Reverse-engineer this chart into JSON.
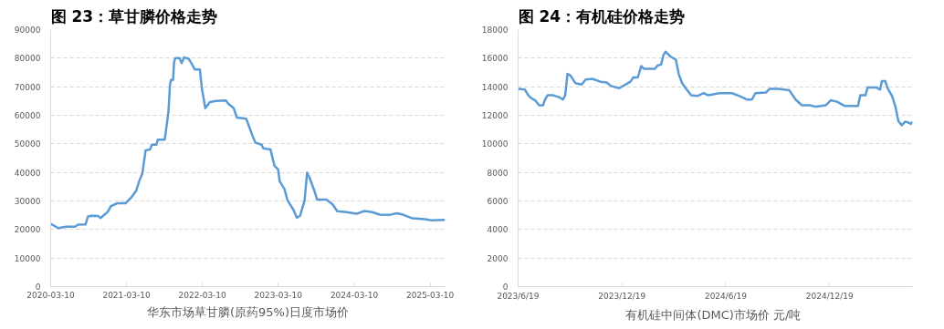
{
  "chart_data": [
    {
      "type": "line",
      "title": "图 23：草甘膦价格走势",
      "xlabel": "华东市场草甘膦(原药95%)日度市场价",
      "grid": "y",
      "line_style": "solid",
      "marker": "none",
      "xlim": [
        "2020-03-10",
        "2025-05-21"
      ],
      "ylim": [
        0,
        90000
      ],
      "xticks": [
        "2020-03-10",
        "2021-03-10",
        "2022-03-10",
        "2023-03-10",
        "2024-03-10",
        "2025-03-10"
      ],
      "yticks": [
        0,
        10000,
        20000,
        30000,
        40000,
        50000,
        60000,
        70000,
        80000,
        90000
      ],
      "series": [
        {
          "color": "#5b9bd5",
          "x": [
            "2020-03-10",
            "2020-04-15",
            "2020-05-25",
            "2020-07-05",
            "2020-07-20",
            "2020-08-25",
            "2020-09-05",
            "2020-09-20",
            "2020-10-25",
            "2020-11-05",
            "2020-12-10",
            "2020-12-25",
            "2021-01-25",
            "2021-03-05",
            "2021-04-05",
            "2021-04-25",
            "2021-05-10",
            "2021-05-25",
            "2021-06-10",
            "2021-07-01",
            "2021-07-10",
            "2021-08-01",
            "2021-08-08",
            "2021-09-10",
            "2021-09-18",
            "2021-09-28",
            "2021-10-05",
            "2021-10-10",
            "2021-10-20",
            "2021-10-25",
            "2021-10-31",
            "2021-11-20",
            "2021-11-30",
            "2021-12-12",
            "2022-01-03",
            "2022-01-18",
            "2022-02-02",
            "2022-02-26",
            "2022-03-08",
            "2022-03-24",
            "2022-04-15",
            "2022-05-15",
            "2022-07-01",
            "2022-07-15",
            "2022-08-08",
            "2022-08-23",
            "2022-10-07",
            "2022-11-05",
            "2022-11-20",
            "2022-12-20",
            "2022-12-28",
            "2023-02-01",
            "2023-02-20",
            "2023-03-10",
            "2023-03-17",
            "2023-04-09",
            "2023-04-24",
            "2023-05-23",
            "2023-06-08",
            "2023-06-23",
            "2023-07-15",
            "2023-07-27",
            "2023-08-07",
            "2023-08-29",
            "2023-09-13",
            "2023-10-28",
            "2023-11-27",
            "2023-12-19",
            "2024-02-02",
            "2024-03-21",
            "2024-04-28",
            "2024-06-04",
            "2024-07-11",
            "2024-08-25",
            "2024-10-01",
            "2024-10-31",
            "2024-12-15",
            "2025-02-13",
            "2025-03-15",
            "2025-05-21"
          ],
          "values": [
            22000,
            20500,
            21000,
            21000,
            21700,
            21800,
            24500,
            24800,
            24700,
            24000,
            26200,
            28200,
            29200,
            29200,
            31500,
            33500,
            36900,
            39600,
            47700,
            48000,
            49700,
            49700,
            51500,
            51500,
            55800,
            61400,
            70600,
            72400,
            72400,
            78700,
            80000,
            80000,
            78300,
            80300,
            79800,
            78000,
            76000,
            76000,
            69300,
            62500,
            64600,
            65000,
            65200,
            63900,
            62500,
            59200,
            58800,
            53100,
            50400,
            49700,
            48400,
            48000,
            42300,
            41000,
            36900,
            34200,
            30200,
            26800,
            24100,
            24800,
            30200,
            39900,
            38300,
            34000,
            30500,
            30500,
            28800,
            26400,
            26100,
            25500,
            26500,
            26100,
            25200,
            25100,
            25700,
            25200,
            23900,
            23600,
            23200,
            23400
          ]
        }
      ]
    },
    {
      "type": "line",
      "title": "图 24：有机硅价格走势",
      "xlabel": "有机硅中间体(DMC)市场价  元/吨",
      "grid": "y",
      "line_style": "solid",
      "marker": "none",
      "xlim": [
        "2023-06-19",
        "2025-05-14"
      ],
      "ylim": [
        0,
        18000
      ],
      "xticks": [
        {
          "value": "2023-06-19",
          "label": "2023/6/19"
        },
        {
          "value": "2023-12-19",
          "label": "2023/12/19"
        },
        {
          "value": "2024-06-19",
          "label": "2024/6/19"
        },
        {
          "value": "2024-12-19",
          "label": "2024/12/19"
        }
      ],
      "yticks": [
        0,
        2000,
        4000,
        6000,
        8000,
        10000,
        12000,
        14000,
        16000,
        18000
      ],
      "series": [
        {
          "color": "#5b9bd5",
          "x": [
            "2023-06-19",
            "2023-07-01",
            "2023-07-07",
            "2023-07-12",
            "2023-07-19",
            "2023-07-26",
            "2023-08-02",
            "2023-08-06",
            "2023-08-10",
            "2023-08-20",
            "2023-08-31",
            "2023-09-06",
            "2023-09-10",
            "2023-09-14",
            "2023-09-19",
            "2023-09-28",
            "2023-10-09",
            "2023-10-16",
            "2023-10-28",
            "2023-11-11",
            "2023-11-22",
            "2023-11-30",
            "2023-12-14",
            "2023-12-25",
            "2024-01-03",
            "2024-01-08",
            "2024-01-16",
            "2024-01-22",
            "2024-01-27",
            "2024-02-15",
            "2024-02-20",
            "2024-02-26",
            "2024-03-01",
            "2024-03-05",
            "2024-03-14",
            "2024-03-23",
            "2024-03-28",
            "2024-04-03",
            "2024-04-11",
            "2024-04-19",
            "2024-04-30",
            "2024-05-11",
            "2024-05-19",
            "2024-06-08",
            "2024-06-30",
            "2024-07-13",
            "2024-07-27",
            "2024-08-04",
            "2024-08-10",
            "2024-08-29",
            "2024-09-04",
            "2024-09-20",
            "2024-10-09",
            "2024-10-20",
            "2024-10-31",
            "2024-11-14",
            "2024-11-25",
            "2024-12-12",
            "2024-12-21",
            "2025-01-01",
            "2025-01-15",
            "2025-02-07",
            "2025-02-11",
            "2025-02-20",
            "2025-02-24",
            "2025-03-11",
            "2025-03-18",
            "2025-03-21",
            "2025-03-27",
            "2025-03-31",
            "2025-04-08",
            "2025-04-14",
            "2025-04-19",
            "2025-04-25",
            "2025-05-01",
            "2025-05-06",
            "2025-05-11",
            "2025-05-14"
          ],
          "values": [
            13850,
            13800,
            13400,
            13200,
            13050,
            12700,
            12700,
            13150,
            13400,
            13400,
            13250,
            13100,
            13400,
            14900,
            14800,
            14250,
            14150,
            14500,
            14550,
            14350,
            14300,
            14050,
            13900,
            14150,
            14350,
            14650,
            14650,
            15450,
            15250,
            15250,
            15500,
            15550,
            16200,
            16450,
            16100,
            15900,
            14900,
            14250,
            13800,
            13400,
            13350,
            13550,
            13400,
            13550,
            13550,
            13350,
            13100,
            13100,
            13550,
            13600,
            13850,
            13850,
            13750,
            13100,
            12700,
            12700,
            12600,
            12700,
            13050,
            12950,
            12650,
            12650,
            13400,
            13400,
            13950,
            13950,
            13800,
            14400,
            14400,
            13900,
            13350,
            12600,
            11600,
            11300,
            11550,
            11500,
            11400,
            11550
          ]
        }
      ]
    }
  ]
}
